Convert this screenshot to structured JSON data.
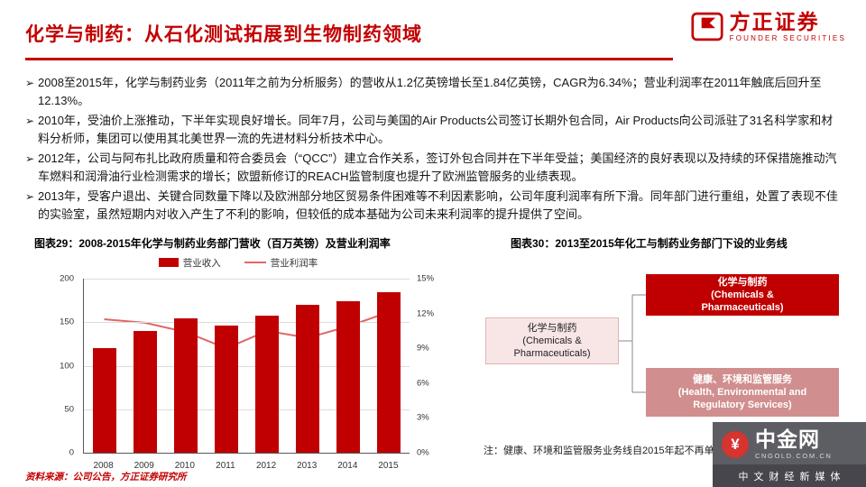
{
  "colors": {
    "accent": "#c30000",
    "bar": "#c00000",
    "line": "#e06666",
    "box_dark": "#c00000",
    "box_rose": "#d08f8e",
    "box_light": "#f7e6e5"
  },
  "header": {
    "title": "化学与制药：从石化测试拓展到生物制药领域",
    "logo_name": "方正证券",
    "logo_subtitle": "FOUNDER SECURITIES"
  },
  "bullet_marker": "➢",
  "bullets": [
    "2008至2015年，化学与制药业务（2011年之前为分析服务）的营收从1.2亿英镑增长至1.84亿英镑，CAGR为6.34%；营业利润率在2011年触底后回升至12.13%。",
    "2010年，受油价上涨推动，下半年实现良好增长。同年7月，公司与美国的Air Products公司签订长期外包合同，Air Products向公司派驻了31名科学家和材料分析师，集团可以使用其北美世界一流的先进材料分析技术中心。",
    "2012年，公司与阿布扎比政府质量和符合委员会（“QCC”）建立合作关系，签订外包合同并在下半年受益；美国经济的良好表现以及持续的环保措施推动汽车燃料和润滑油行业检测需求的增长；欧盟新修订的REACH监管制度也提升了欧洲监管服务的业绩表现。",
    "2013年，受客户退出、关键合同数量下降以及欧洲部分地区贸易条件困难等不利因素影响，公司年度利润率有所下滑。同年部门进行重组，处置了表现不佳的实验室，虽然短期内对收入产生了不利的影响，但较低的成本基础为公司未来利润率的提升提供了空间。"
  ],
  "figure29": {
    "title": "图表29：2008-2015年化学与制药业务部门营收（百万英镑）及营业利润率"
  },
  "chart_data": {
    "type": "bar",
    "categories": [
      "2008",
      "2009",
      "2010",
      "2011",
      "2012",
      "2013",
      "2014",
      "2015"
    ],
    "series": [
      {
        "name": "营业收入",
        "type": "bar",
        "axis": "left",
        "color": "#c00000",
        "values": [
          120,
          140,
          154,
          146,
          158,
          170,
          174,
          184
        ]
      },
      {
        "name": "营业利润率",
        "type": "line",
        "axis": "right",
        "color": "#e06666",
        "values": [
          11.5,
          11.2,
          10.4,
          9.0,
          10.5,
          9.9,
          10.9,
          12.13
        ]
      }
    ],
    "title": "2008-2015年化学与制药业务部门营收（百万英镑）及营业利润率",
    "xlabel": "",
    "ylabel": "",
    "left_axis": {
      "min": 0,
      "max": 200,
      "ticks": [
        0,
        50,
        100,
        150,
        200
      ]
    },
    "right_axis": {
      "min": 0,
      "max": 15,
      "ticks": [
        "0%",
        "3%",
        "6%",
        "9%",
        "12%",
        "15%"
      ]
    },
    "legend_position": "top",
    "grid": true
  },
  "figure30": {
    "title": "图表30：2013至2015年化工与制药业务部门下设的业务线",
    "parent_box": "化学与制药\n(Chemicals &\nPharmaceuticals)",
    "child_box1": "化学与制药\n(Chemicals &\nPharmaceuticals)",
    "child_box2": "健康、环境和监管服务\n(Health, Environmental and\nRegulatory Services)",
    "note": "注：健康、环境和监管服务业务线自2015年起不再单独列示"
  },
  "footer": {
    "source": "资料来源：公司公告，方正证券研究所"
  },
  "watermark": {
    "symbol": "¥",
    "name": "中金网",
    "domain": "CNGOLD.COM.CN",
    "tagline": "中文财经新媒体"
  }
}
